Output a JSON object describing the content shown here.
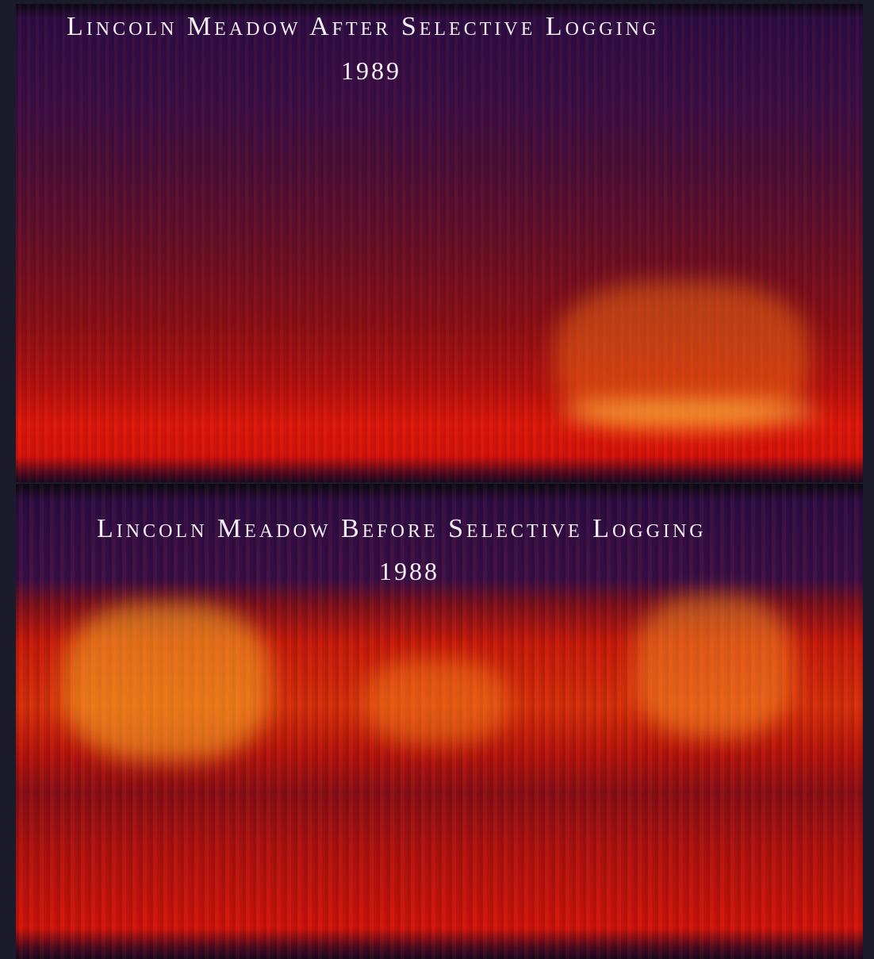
{
  "panels": [
    {
      "title": "Lincoln Meadow After Selective Logging",
      "year": "1989"
    },
    {
      "title": "Lincoln Meadow Before Selective Logging",
      "year": "1988"
    }
  ]
}
